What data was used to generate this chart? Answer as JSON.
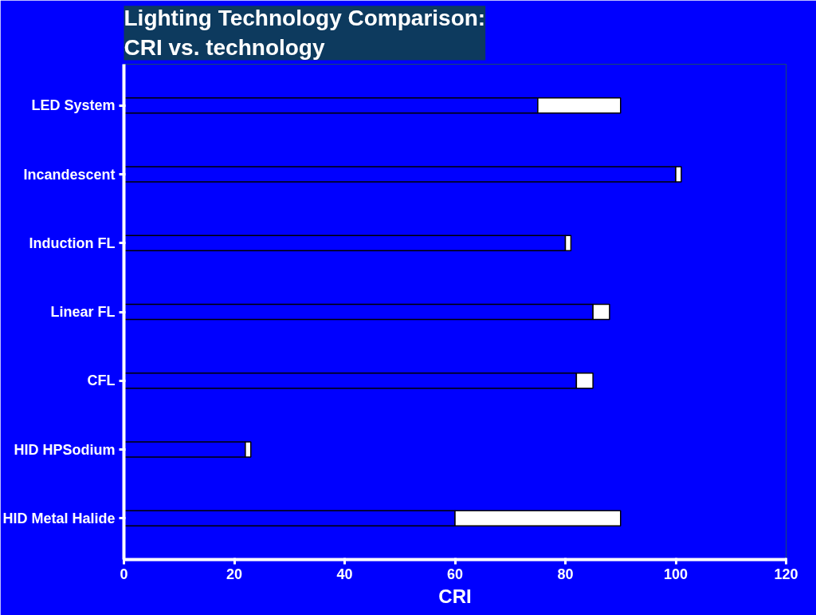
{
  "chart_data": {
    "type": "bar",
    "orientation": "horizontal",
    "stacked": true,
    "title": "Lighting Technology Comparison:\nCRI vs. technology",
    "xlabel": "CRI",
    "categories": [
      "LED System",
      "Incandescent",
      "Induction FL",
      "Linear FL",
      "CFL",
      "HID HPSodium",
      "HID Metal Halide"
    ],
    "series": [
      {
        "color": "#0000ff",
        "values": [
          75,
          100,
          80,
          85,
          82,
          22,
          60
        ]
      },
      {
        "color": "#ffffff",
        "values": [
          15,
          1,
          1,
          3,
          3,
          1,
          30
        ]
      }
    ],
    "xlim": [
      0,
      120
    ],
    "xticks": [
      0,
      20,
      40,
      60,
      80,
      100,
      120
    ],
    "grid": false
  }
}
